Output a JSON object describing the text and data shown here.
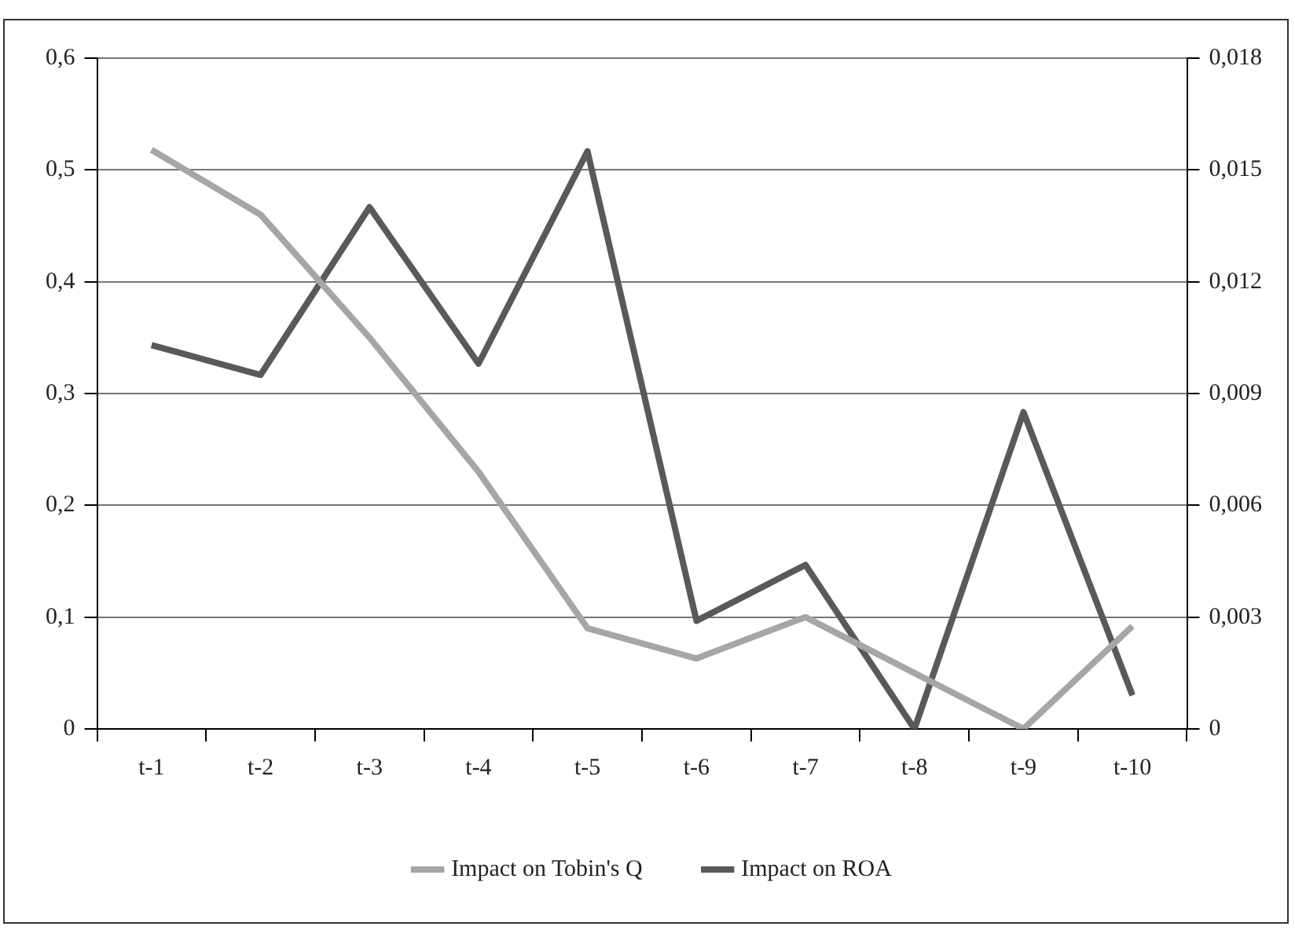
{
  "chart_data": {
    "type": "line",
    "categories": [
      "t-1",
      "t-2",
      "t-3",
      "t-4",
      "t-5",
      "t-6",
      "t-7",
      "t-8",
      "t-9",
      "t-10"
    ],
    "series": [
      {
        "name": "Impact on Tobin's Q",
        "color": "#a6a6a6",
        "values": [
          0.518,
          0.46,
          0.35,
          0.23,
          0.09,
          0.063,
          0.1,
          0.05,
          0,
          0.092
        ]
      },
      {
        "name": "Impact on ROA",
        "color": "#595959",
        "axis": "y2",
        "values": [
          0.0103,
          0.0095,
          0.014,
          0.0098,
          0.0155,
          0.0029,
          0.0044,
          0,
          0.0085,
          0.0009
        ]
      }
    ],
    "ylim": [
      0,
      0.6
    ],
    "yticks": [
      {
        "value": 0,
        "label": "0"
      },
      {
        "value": 0.1,
        "label": "0,1"
      },
      {
        "value": 0.2,
        "label": "0,2"
      },
      {
        "value": 0.3,
        "label": "0,3"
      },
      {
        "value": 0.4,
        "label": "0,4"
      },
      {
        "value": 0.5,
        "label": "0,5"
      },
      {
        "value": 0.6,
        "label": "0,6"
      }
    ],
    "y2lim": [
      0,
      0.018
    ],
    "y2ticks": [
      {
        "value": 0,
        "label": "0"
      },
      {
        "value": 0.003,
        "label": "0,003"
      },
      {
        "value": 0.006,
        "label": "0,006"
      },
      {
        "value": 0.009,
        "label": "0,009"
      },
      {
        "value": 0.012,
        "label": "0,012"
      },
      {
        "value": 0.015,
        "label": "0,015"
      },
      {
        "value": 0.018,
        "label": "0,018"
      }
    ],
    "grid": "y",
    "legend": "bottom",
    "marker": "none",
    "line_style": "solid"
  }
}
